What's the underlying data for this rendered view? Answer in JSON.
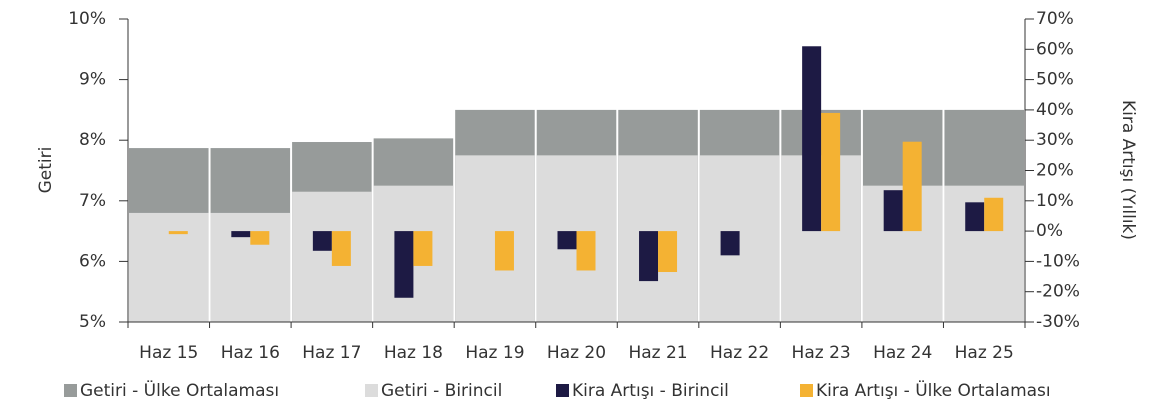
{
  "chart_data": {
    "type": "bar",
    "categories": [
      "Haz 15",
      "Haz 16",
      "Haz 17",
      "Haz 18",
      "Haz 19",
      "Haz 20",
      "Haz 21",
      "Haz 22",
      "Haz 23",
      "Haz 24",
      "Haz 25"
    ],
    "y_label": "Getiri",
    "y2_label": "Kira Artışı (Yıllık)",
    "series": [
      {
        "name": "Getiri - Ülke Ortalaması",
        "color": "#979b9a",
        "values": [
          7.87,
          7.87,
          7.97,
          8.03,
          8.5,
          8.5,
          8.5,
          8.5,
          8.5,
          8.5,
          8.5
        ]
      },
      {
        "name": "Getiri - Birincil",
        "color": "#dcdcdc",
        "values": [
          6.8,
          6.8,
          7.15,
          7.25,
          7.75,
          7.75,
          7.75,
          7.75,
          7.75,
          7.25,
          7.25
        ]
      },
      {
        "name": "Kira Artışı - Birincil",
        "color": "#1d1a44",
        "axis": "y2",
        "values": [
          null,
          -2,
          -6.5,
          -22,
          null,
          -6,
          -16.5,
          -8,
          61,
          13.5,
          9.5
        ]
      },
      {
        "name": "Kira Artışı - Ülke Ortalaması",
        "color": "#f4b233",
        "axis": "y2",
        "values": [
          -1,
          -4.5,
          -11.5,
          -11.5,
          -13,
          -13,
          -13.5,
          null,
          39,
          29.5,
          11
        ]
      }
    ],
    "ylim": [
      5,
      10
    ],
    "yticks": [
      {
        "value": 5,
        "label": "5%"
      },
      {
        "value": 6,
        "label": "6%"
      },
      {
        "value": 7,
        "label": "7%"
      },
      {
        "value": 8,
        "label": "8%"
      },
      {
        "value": 9,
        "label": "9%"
      },
      {
        "value": 10,
        "label": "10%"
      }
    ],
    "y2lim": [
      -30,
      70
    ],
    "y2ticks": [
      {
        "value": -30,
        "label": "-30%"
      },
      {
        "value": -20,
        "label": "-20%"
      },
      {
        "value": -10,
        "label": "-10%"
      },
      {
        "value": 0,
        "label": "0%"
      },
      {
        "value": 10,
        "label": "10%"
      },
      {
        "value": 20,
        "label": "20%"
      },
      {
        "value": 30,
        "label": "30%"
      },
      {
        "value": 40,
        "label": "40%"
      },
      {
        "value": 50,
        "label": "50%"
      },
      {
        "value": 60,
        "label": "60%"
      },
      {
        "value": 70,
        "label": "70%"
      }
    ],
    "legend": "bottom"
  }
}
